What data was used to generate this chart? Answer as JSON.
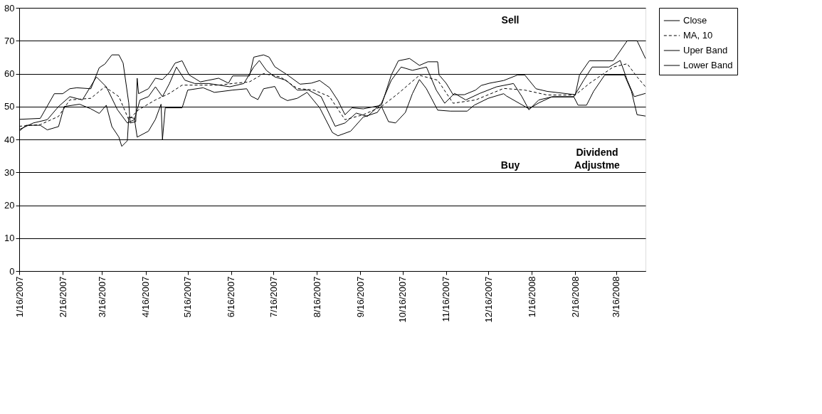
{
  "chart_data": {
    "type": "line",
    "xlim": [
      "2007-01-16",
      "2008-04-06"
    ],
    "xticks": [
      {
        "value": "2007-01-16",
        "label": "1/16/2007"
      },
      {
        "value": "2007-02-16",
        "label": "2/16/2007"
      },
      {
        "value": "2007-03-16",
        "label": "3/16/2007"
      },
      {
        "value": "2007-04-16",
        "label": "4/16/2007"
      },
      {
        "value": "2007-05-16",
        "label": "5/16/2007"
      },
      {
        "value": "2007-06-16",
        "label": "6/16/2007"
      },
      {
        "value": "2007-07-16",
        "label": "7/16/2007"
      },
      {
        "value": "2007-08-16",
        "label": "8/16/2007"
      },
      {
        "value": "2007-09-16",
        "label": "9/16/2007"
      },
      {
        "value": "2007-10-16",
        "label": "10/16/2007"
      },
      {
        "value": "2007-11-16",
        "label": "11/16/2007"
      },
      {
        "value": "2007-12-16",
        "label": "12/16/2007"
      },
      {
        "value": "2008-01-16",
        "label": "1/16/2008"
      },
      {
        "value": "2008-02-16",
        "label": "2/16/2008"
      },
      {
        "value": "2008-03-16",
        "label": "3/16/2008"
      }
    ],
    "ylim": [
      0,
      80
    ],
    "yticks": [
      0,
      10,
      20,
      30,
      40,
      50,
      60,
      70,
      80
    ],
    "grid": "y",
    "legend": "right",
    "marker": "none",
    "series": [
      {
        "name": "Close",
        "color": "#000000",
        "line_style": "solid",
        "x": [
          "2007-01-16",
          "2007-01-26",
          "2007-02-05",
          "2007-02-13",
          "2007-02-21",
          "2007-03-02",
          "2007-03-12",
          "2007-03-19",
          "2007-03-27",
          "2007-04-03",
          "2007-04-08",
          "2007-04-12",
          "2007-04-18",
          "2007-04-23",
          "2007-04-28",
          "2007-05-03",
          "2007-05-08",
          "2007-05-14",
          "2007-05-21",
          "2007-05-31",
          "2007-06-15",
          "2007-06-25",
          "2007-07-02",
          "2007-07-06",
          "2007-07-11",
          "2007-07-17",
          "2007-07-25",
          "2007-08-02",
          "2007-08-10",
          "2007-08-19",
          "2007-08-29",
          "2007-09-05",
          "2007-09-13",
          "2007-09-21",
          "2007-10-01",
          "2007-10-08",
          "2007-10-15",
          "2007-10-23",
          "2007-11-02",
          "2007-11-09",
          "2007-11-15",
          "2007-11-22",
          "2007-11-30",
          "2007-12-10",
          "2007-12-22",
          "2008-01-03",
          "2008-01-09",
          "2008-01-14",
          "2008-01-21",
          "2008-01-31",
          "2008-02-15",
          "2008-02-22",
          "2008-02-28",
          "2008-03-11",
          "2008-03-19",
          "2008-03-24",
          "2008-03-29",
          "2008-04-06"
        ],
        "values": [
          43,
          45,
          46,
          50,
          53,
          52,
          59,
          56,
          49,
          45,
          46,
          52,
          53,
          56,
          53,
          57,
          62,
          58,
          57,
          57,
          56,
          57,
          62,
          64,
          61,
          59,
          58,
          55,
          55,
          53,
          44,
          45,
          48,
          47,
          51,
          58,
          62,
          61,
          62,
          55,
          51,
          54,
          52,
          54,
          56,
          57,
          53,
          49,
          52,
          53,
          53,
          58,
          62,
          62,
          64,
          58,
          53,
          54
        ]
      },
      {
        "name": "MA, 10",
        "color": "#000000",
        "line_style": "dashed",
        "x": [
          "2007-01-16",
          "2007-01-31",
          "2007-02-13",
          "2007-02-21",
          "2007-03-08",
          "2007-03-18",
          "2007-03-28",
          "2007-04-04",
          "2007-04-11",
          "2007-04-23",
          "2007-05-03",
          "2007-05-12",
          "2007-05-25",
          "2007-06-07",
          "2007-06-17",
          "2007-06-29",
          "2007-07-09",
          "2007-07-21",
          "2007-08-02",
          "2007-08-14",
          "2007-08-25",
          "2007-09-05",
          "2007-09-18",
          "2007-10-01",
          "2007-10-13",
          "2007-10-28",
          "2007-11-10",
          "2007-11-21",
          "2007-12-07",
          "2007-12-27",
          "2008-01-11",
          "2008-01-27",
          "2008-02-16",
          "2008-02-26",
          "2008-03-14",
          "2008-03-24",
          "2008-03-31",
          "2008-04-06"
        ],
        "values": [
          44,
          44.5,
          47,
          52,
          52.5,
          56,
          53,
          46,
          49,
          52,
          54,
          56.5,
          56.5,
          56.5,
          57,
          57.5,
          60,
          59,
          55.5,
          55,
          53,
          46,
          47.5,
          50,
          54,
          59.5,
          58,
          51,
          52,
          55.5,
          55,
          53.5,
          53.5,
          57,
          62,
          63,
          59,
          56
        ]
      },
      {
        "name": "Uper Band",
        "color": "#000000",
        "line_style": "solid",
        "x": [
          "2007-01-16",
          "2007-01-31",
          "2007-02-10",
          "2007-02-16",
          "2007-02-21",
          "2007-02-26",
          "2007-03-08",
          "2007-03-14",
          "2007-03-18",
          "2007-03-23",
          "2007-03-28",
          "2007-03-31",
          "2007-04-04",
          "2007-04-05",
          "2007-04-09",
          "2007-04-10",
          "2007-04-11",
          "2007-04-18",
          "2007-04-23",
          "2007-04-28",
          "2007-05-03",
          "2007-05-07",
          "2007-05-12",
          "2007-05-17",
          "2007-05-25",
          "2007-06-07",
          "2007-06-14",
          "2007-06-17",
          "2007-06-29",
          "2007-07-02",
          "2007-07-09",
          "2007-07-13",
          "2007-07-17",
          "2007-07-26",
          "2007-08-04",
          "2007-08-12",
          "2007-08-18",
          "2007-08-25",
          "2007-08-31",
          "2007-09-05",
          "2007-09-10",
          "2007-09-18",
          "2007-10-01",
          "2007-10-08",
          "2007-10-13",
          "2007-10-21",
          "2007-10-28",
          "2007-11-03",
          "2007-11-10",
          "2007-11-11",
          "2007-11-16",
          "2007-11-21",
          "2007-11-29",
          "2007-12-07",
          "2007-12-11",
          "2007-12-17",
          "2007-12-27",
          "2008-01-06",
          "2008-01-11",
          "2008-01-19",
          "2008-01-27",
          "2008-02-16",
          "2008-02-19",
          "2008-02-26",
          "2008-03-14",
          "2008-03-17",
          "2008-03-24",
          "2008-03-31",
          "2008-04-06"
        ],
        "values": [
          46.1,
          46.4,
          53.9,
          53.9,
          55.4,
          55.7,
          55.4,
          61.8,
          62.9,
          65.7,
          65.7,
          63.2,
          51.1,
          45.0,
          45.4,
          58.6,
          53.9,
          55.4,
          58.6,
          58.2,
          60.4,
          63.2,
          63.9,
          59.6,
          57.5,
          58.6,
          57.1,
          59.3,
          59.3,
          65.0,
          65.7,
          65.0,
          62.1,
          59.6,
          56.8,
          57.1,
          57.9,
          55.7,
          51.8,
          47.5,
          49.6,
          49.3,
          50.4,
          59.6,
          63.9,
          64.6,
          62.5,
          63.6,
          63.6,
          59.6,
          57.1,
          53.6,
          53.6,
          55.0,
          56.4,
          57.1,
          57.9,
          59.6,
          59.6,
          55.4,
          54.6,
          53.6,
          59.6,
          63.9,
          63.9,
          65.7,
          70,
          70,
          64.6
        ]
      },
      {
        "name": "Lower Band",
        "color": "#000000",
        "line_style": "solid",
        "x": [
          "2007-01-16",
          "2007-01-21",
          "2007-01-31",
          "2007-02-05",
          "2007-02-13",
          "2007-02-17",
          "2007-02-28",
          "2007-03-08",
          "2007-03-14",
          "2007-03-19",
          "2007-03-23",
          "2007-03-28",
          "2007-03-30",
          "2007-04-03",
          "2007-04-04",
          "2007-04-08",
          "2007-04-10",
          "2007-04-18",
          "2007-04-23",
          "2007-04-27",
          "2007-04-28",
          "2007-04-30",
          "2007-05-12",
          "2007-05-16",
          "2007-05-27",
          "2007-06-04",
          "2007-06-17",
          "2007-06-27",
          "2007-06-30",
          "2007-07-05",
          "2007-07-09",
          "2007-07-17",
          "2007-07-21",
          "2007-07-26",
          "2007-08-02",
          "2007-08-09",
          "2007-08-18",
          "2007-08-27",
          "2007-08-31",
          "2007-09-09",
          "2007-09-18",
          "2007-09-28",
          "2007-10-01",
          "2007-10-06",
          "2007-10-11",
          "2007-10-18",
          "2007-10-23",
          "2007-10-28",
          "2007-11-02",
          "2007-11-10",
          "2007-11-19",
          "2007-12-01",
          "2007-12-06",
          "2007-12-16",
          "2007-12-27",
          "2007-12-29",
          "2008-01-14",
          "2008-01-21",
          "2008-01-30",
          "2008-02-15",
          "2008-02-18",
          "2008-02-24",
          "2008-02-29",
          "2008-03-08",
          "2008-03-22",
          "2008-03-27",
          "2008-03-31",
          "2008-04-06"
        ],
        "values": [
          42.5,
          44.3,
          44.3,
          42.9,
          43.9,
          50,
          50.7,
          49.3,
          47.9,
          50.4,
          43.9,
          40.7,
          37.9,
          39.6,
          46.8,
          46.4,
          40.7,
          42.5,
          46.1,
          50.7,
          40,
          49.6,
          49.6,
          55,
          55.7,
          54.3,
          55,
          55.4,
          53.2,
          52.1,
          55.4,
          56.1,
          52.9,
          51.8,
          52.5,
          54.3,
          49.6,
          42.1,
          41.1,
          42.5,
          46.8,
          48.2,
          50,
          45.4,
          45,
          48.2,
          53.9,
          58.2,
          55.4,
          48.9,
          48.6,
          48.6,
          50.4,
          52.5,
          53.9,
          53.2,
          49.3,
          51.1,
          52.9,
          52.9,
          50.4,
          50.4,
          54.6,
          59.6,
          59.6,
          54.6,
          47.5,
          47.1
        ]
      }
    ],
    "annotations": [
      "Sell",
      "Buy",
      "Dividend Adjustme"
    ]
  }
}
